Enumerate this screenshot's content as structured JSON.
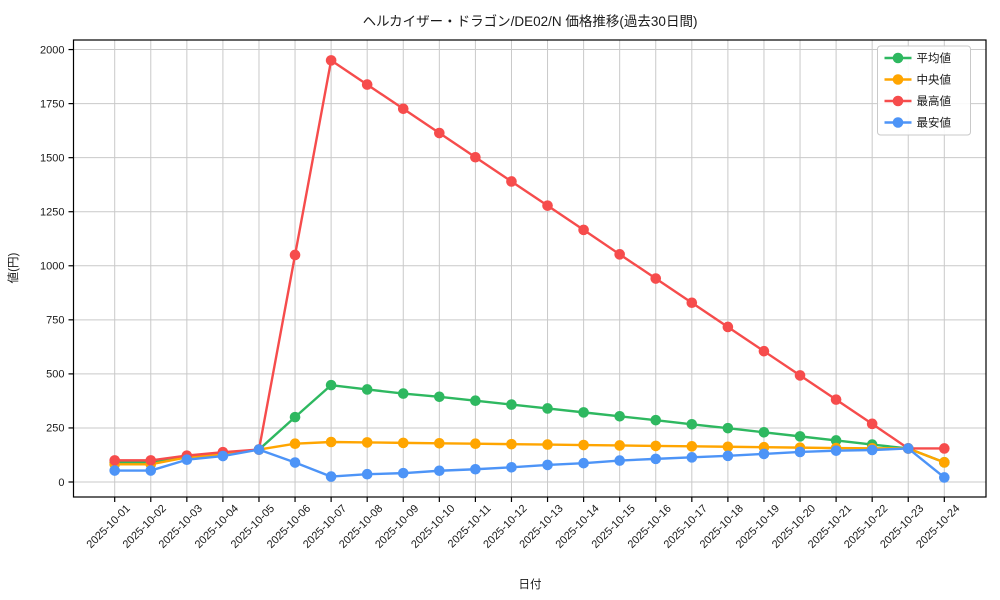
{
  "chart_data": {
    "type": "line",
    "title": "ヘルカイザー・ドラゴン/DE02/N 価格推移(過去30日間)",
    "xlabel": "日付",
    "ylabel": "値(円)",
    "grid": true,
    "legend_position": "upper right",
    "ylim": [
      0,
      2000
    ],
    "ytick_step": 250,
    "x": [
      "2025-10-01",
      "2025-10-02",
      "2025-10-03",
      "2025-10-04",
      "2025-10-05",
      "2025-10-06",
      "2025-10-07",
      "2025-10-08",
      "2025-10-09",
      "2025-10-10",
      "2025-10-11",
      "2025-10-12",
      "2025-10-13",
      "2025-10-14",
      "2025-10-15",
      "2025-10-16",
      "2025-10-17",
      "2025-10-18",
      "2025-10-19",
      "2025-10-20",
      "2025-10-21",
      "2025-10-22",
      "2025-10-23",
      "2025-10-24"
    ],
    "series": [
      {
        "key": "average",
        "name": "平均値",
        "color": "#2eb860",
        "values": [
          90,
          90,
          118,
          132,
          150,
          300,
          448,
          428,
          409,
          394,
          376,
          358,
          340,
          322,
          304,
          286,
          267,
          249,
          230,
          211,
          192,
          173,
          155,
          91
        ]
      },
      {
        "key": "median",
        "name": "中央値",
        "color": "#ffa500",
        "values": [
          82,
          82,
          114,
          128,
          150,
          177,
          185,
          183,
          181,
          179,
          177,
          175,
          173,
          171,
          169,
          167,
          165,
          163,
          161,
          159,
          157,
          156,
          155,
          91
        ]
      },
      {
        "key": "highest",
        "name": "最高値",
        "color": "#f64c4c",
        "values": [
          100,
          100,
          122,
          138,
          150,
          1050,
          1950,
          1838,
          1726,
          1614,
          1502,
          1390,
          1278,
          1166,
          1053,
          941,
          829,
          717,
          605,
          493,
          381,
          269,
          155,
          155
        ]
      },
      {
        "key": "lowest",
        "name": "最安値",
        "color": "#4d94f7",
        "values": [
          53,
          53,
          103,
          120,
          150,
          90,
          25,
          36,
          41,
          52,
          59,
          68,
          79,
          87,
          99,
          107,
          114,
          121,
          130,
          139,
          145,
          148,
          155,
          21
        ]
      }
    ]
  }
}
